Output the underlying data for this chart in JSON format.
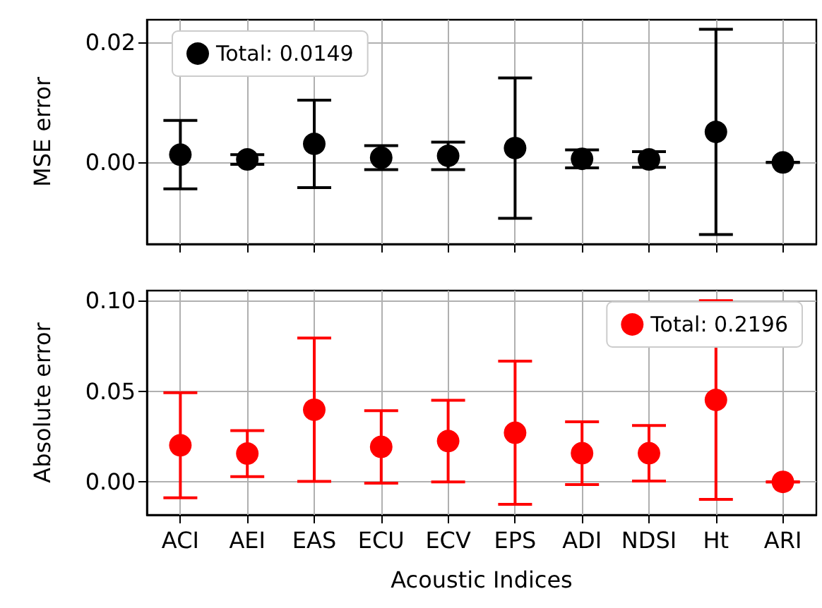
{
  "chart_data": [
    {
      "type": "scatter",
      "ylabel": "MSE error",
      "categories": [
        null,
        null,
        null,
        null,
        null,
        null,
        null,
        null,
        null,
        null
      ],
      "series": [
        {
          "name": "Total: 0.0149",
          "color": "#000000",
          "values": [
            0.0013,
            0.0005,
            0.0031,
            0.0008,
            0.0011,
            0.0024,
            0.0006,
            0.0005,
            0.0051,
            0.0
          ],
          "errors": [
            0.0057,
            0.0008,
            0.0073,
            0.002,
            0.0023,
            0.0117,
            0.0015,
            0.0013,
            0.0171,
            0.0
          ]
        }
      ],
      "ylim": [
        -0.0136,
        0.0238
      ],
      "yticks": [
        {
          "value": 0,
          "label": "0.00"
        },
        {
          "value": 0.02,
          "label": "0.02"
        }
      ],
      "grid": true,
      "legend": "top left",
      "marker": "circle"
    },
    {
      "type": "scatter",
      "xlabel": "Acoustic Indices",
      "ylabel": "Absolute error",
      "categories": [
        "ACI",
        "AEI",
        "EAS",
        "ECU",
        "ECV",
        "EPS",
        "ADI",
        "NDSI",
        "Ht",
        "ARI"
      ],
      "series": [
        {
          "name": "Total: 0.2196",
          "color": "#ff0000",
          "values": [
            0.0202,
            0.0156,
            0.0398,
            0.0193,
            0.0225,
            0.0271,
            0.0158,
            0.0158,
            0.0452,
            0.0
          ],
          "errors": [
            0.029,
            0.0127,
            0.0395,
            0.02,
            0.0225,
            0.0395,
            0.0173,
            0.0153,
            0.0548,
            0.0
          ]
        }
      ],
      "ylim": [
        -0.0182,
        0.1055
      ],
      "yticks": [
        {
          "value": 0,
          "label": "0.00"
        },
        {
          "value": 0.05,
          "label": "0.05"
        },
        {
          "value": 0.1,
          "label": "0.10"
        }
      ],
      "grid": true,
      "legend": "top right",
      "marker": "circle"
    }
  ]
}
